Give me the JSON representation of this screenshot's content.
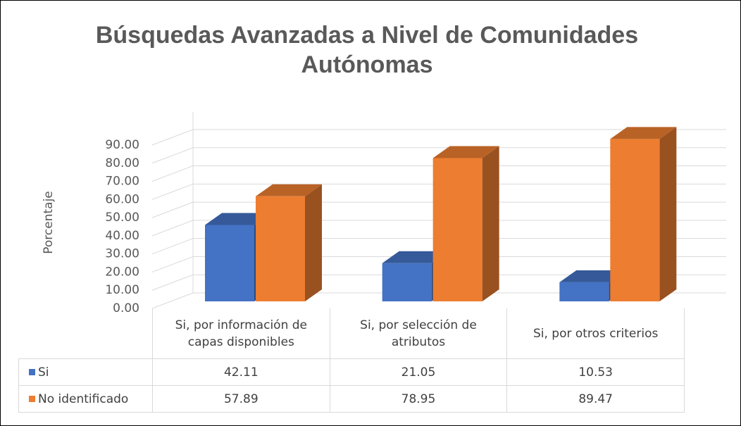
{
  "chart_data": {
    "type": "bar3d",
    "title": "Búsquedas Avanzadas a Nivel de Comunidades Autónomas",
    "y_label": "Porcentaje",
    "categories": [
      "Si, por información de capas disponibles",
      "Si, por selección de atributos",
      "Si, por otros criterios"
    ],
    "series": [
      {
        "name": "Si",
        "color": "#4472c4",
        "values": [
          42.11,
          21.05,
          10.53
        ]
      },
      {
        "name": "No identificado",
        "color": "#ed7d31",
        "values": [
          57.89,
          78.95,
          89.47
        ]
      }
    ],
    "ylim": [
      0,
      90
    ],
    "yticks": [
      {
        "value": 0,
        "label": "0.00"
      },
      {
        "value": 10,
        "label": "10.00"
      },
      {
        "value": 20,
        "label": "20.00"
      },
      {
        "value": 30,
        "label": "30.00"
      },
      {
        "value": 40,
        "label": "40.00"
      },
      {
        "value": 50,
        "label": "50.00"
      },
      {
        "value": 60,
        "label": "60.00"
      },
      {
        "value": 70,
        "label": "70.00"
      },
      {
        "value": 80,
        "label": "80.00"
      },
      {
        "value": 90,
        "label": "90.00"
      }
    ],
    "grid": true,
    "data_table": true
  }
}
